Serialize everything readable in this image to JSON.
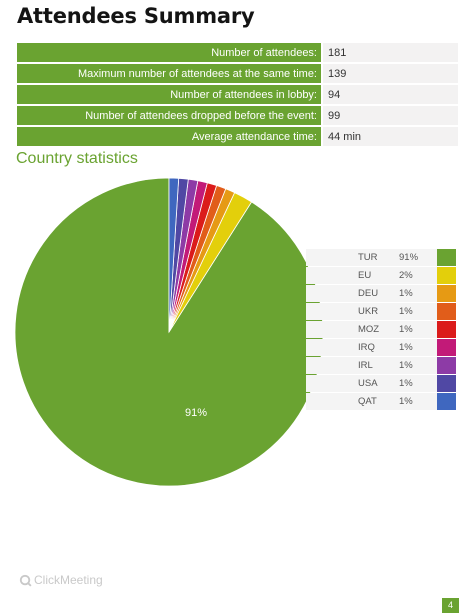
{
  "title": "Attendees Summary",
  "summary": [
    {
      "label": "Number of attendees:",
      "value": "181"
    },
    {
      "label": "Maximum number of attendees at the same time:",
      "value": "139"
    },
    {
      "label": "Number of attendees in lobby:",
      "value": "94"
    },
    {
      "label": "Number of attendees dropped before the event:",
      "value": "99"
    },
    {
      "label": "Average attendance time:",
      "value": "44 min"
    }
  ],
  "section_title": "Country statistics",
  "chart_data": {
    "type": "pie",
    "slice_label": "91%",
    "slices": [
      {
        "label": "TUR",
        "percent_text": "91%",
        "value": 91,
        "color": "#6aa331"
      },
      {
        "label": "EU",
        "percent_text": "2%",
        "value": 2,
        "color": "#e3cf0b"
      },
      {
        "label": "DEU",
        "percent_text": "1%",
        "value": 1,
        "color": "#e69a14"
      },
      {
        "label": "UKR",
        "percent_text": "1%",
        "value": 1,
        "color": "#e15d1a"
      },
      {
        "label": "MOZ",
        "percent_text": "1%",
        "value": 1,
        "color": "#db1b1b"
      },
      {
        "label": "IRQ",
        "percent_text": "1%",
        "value": 1,
        "color": "#c21a78"
      },
      {
        "label": "IRL",
        "percent_text": "1%",
        "value": 1,
        "color": "#8d3ba6"
      },
      {
        "label": "USA",
        "percent_text": "1%",
        "value": 1,
        "color": "#5048a4"
      },
      {
        "label": "QAT",
        "percent_text": "1%",
        "value": 1,
        "color": "#3f67bf"
      }
    ],
    "legend_position": "right"
  },
  "footer": {
    "brand": "ClickMeeting",
    "page_number": "4"
  }
}
